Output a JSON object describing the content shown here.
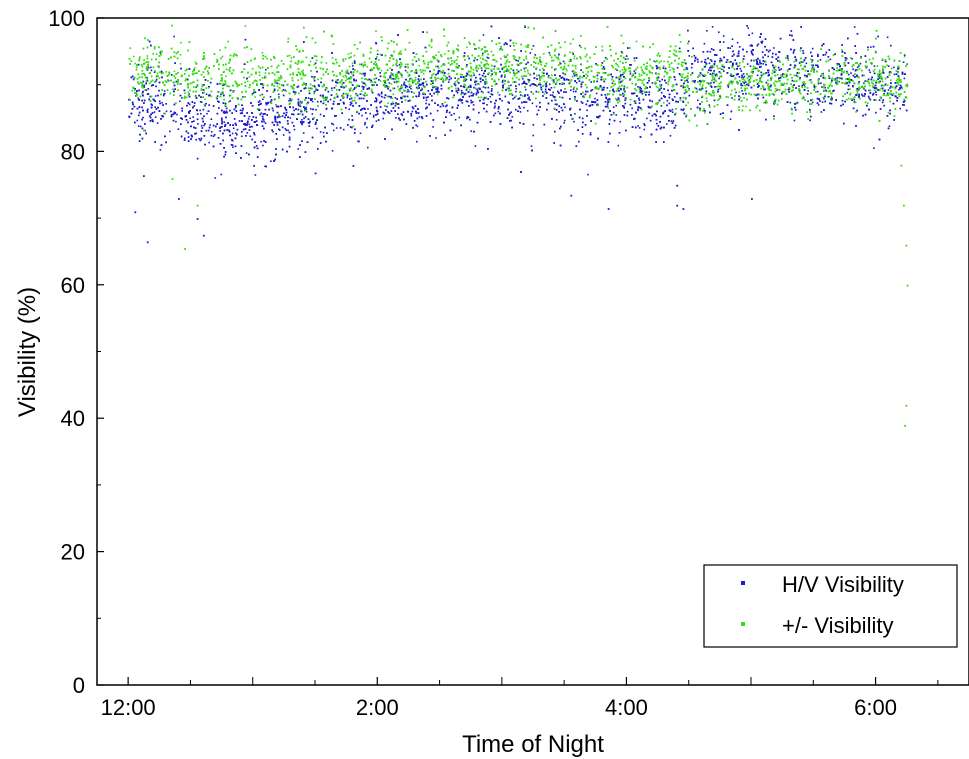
{
  "chart_data": {
    "type": "scatter",
    "title": "",
    "xlabel": "Time of Night",
    "ylabel": "Visibility (%)",
    "xlim": [
      -0.25,
      6.75
    ],
    "ylim": [
      0,
      100
    ],
    "x_ticks": [
      {
        "value": 0,
        "label": "12:00"
      },
      {
        "value": 2,
        "label": "2:00"
      },
      {
        "value": 4,
        "label": "4:00"
      },
      {
        "value": 6,
        "label": "6:00"
      }
    ],
    "y_ticks": [
      {
        "value": 0,
        "label": "0"
      },
      {
        "value": 20,
        "label": "20"
      },
      {
        "value": 40,
        "label": "40"
      },
      {
        "value": 60,
        "label": "60"
      },
      {
        "value": 80,
        "label": "80"
      },
      {
        "value": 100,
        "label": "100"
      }
    ],
    "grid": false,
    "legend_position": "bottom-right",
    "series": [
      {
        "name": "H/V Visibility",
        "color": "#1a1acc",
        "x_range": [
          0,
          6.25
        ],
        "trend": [
          {
            "x": 0.0,
            "y": 88
          },
          {
            "x": 0.25,
            "y": 87
          },
          {
            "x": 0.5,
            "y": 86
          },
          {
            "x": 0.75,
            "y": 85
          },
          {
            "x": 1.0,
            "y": 85
          },
          {
            "x": 1.25,
            "y": 86
          },
          {
            "x": 1.5,
            "y": 87
          },
          {
            "x": 1.75,
            "y": 88
          },
          {
            "x": 2.0,
            "y": 88.5
          },
          {
            "x": 2.5,
            "y": 89
          },
          {
            "x": 3.0,
            "y": 89.5
          },
          {
            "x": 3.5,
            "y": 89
          },
          {
            "x": 4.0,
            "y": 88.5
          },
          {
            "x": 4.4,
            "y": 87
          },
          {
            "x": 4.5,
            "y": 91
          },
          {
            "x": 5.0,
            "y": 93
          },
          {
            "x": 5.5,
            "y": 91
          },
          {
            "x": 6.0,
            "y": 90
          },
          {
            "x": 6.25,
            "y": 89
          }
        ],
        "spread": 4.5,
        "outliers": [
          {
            "x": 0.05,
            "y": 71
          },
          {
            "x": 0.15,
            "y": 66.5
          },
          {
            "x": 0.4,
            "y": 73
          },
          {
            "x": 0.55,
            "y": 70
          },
          {
            "x": 0.6,
            "y": 67.5
          },
          {
            "x": 3.55,
            "y": 73.5
          },
          {
            "x": 3.85,
            "y": 71.5
          },
          {
            "x": 4.4,
            "y": 72
          },
          {
            "x": 4.45,
            "y": 71.5
          },
          {
            "x": 4.4,
            "y": 75
          },
          {
            "x": 5.0,
            "y": 73
          }
        ]
      },
      {
        "name": "+/- Visibility",
        "color": "#33dd11",
        "x_range": [
          0,
          6.25
        ],
        "trend": [
          {
            "x": 0.0,
            "y": 92
          },
          {
            "x": 0.5,
            "y": 91.5
          },
          {
            "x": 1.0,
            "y": 91
          },
          {
            "x": 1.5,
            "y": 91.5
          },
          {
            "x": 2.0,
            "y": 92
          },
          {
            "x": 2.5,
            "y": 92.5
          },
          {
            "x": 3.0,
            "y": 93
          },
          {
            "x": 3.5,
            "y": 92.5
          },
          {
            "x": 4.0,
            "y": 92
          },
          {
            "x": 4.4,
            "y": 92
          },
          {
            "x": 4.5,
            "y": 90
          },
          {
            "x": 5.0,
            "y": 90
          },
          {
            "x": 5.5,
            "y": 91
          },
          {
            "x": 6.0,
            "y": 91
          },
          {
            "x": 6.25,
            "y": 90
          }
        ],
        "spread": 3.5,
        "outliers": [
          {
            "x": 0.35,
            "y": 76
          },
          {
            "x": 0.45,
            "y": 65.5
          },
          {
            "x": 0.55,
            "y": 72
          },
          {
            "x": 6.2,
            "y": 78
          },
          {
            "x": 6.22,
            "y": 72
          },
          {
            "x": 6.24,
            "y": 66
          },
          {
            "x": 6.25,
            "y": 60
          },
          {
            "x": 6.24,
            "y": 42
          },
          {
            "x": 6.23,
            "y": 39
          }
        ]
      }
    ]
  }
}
